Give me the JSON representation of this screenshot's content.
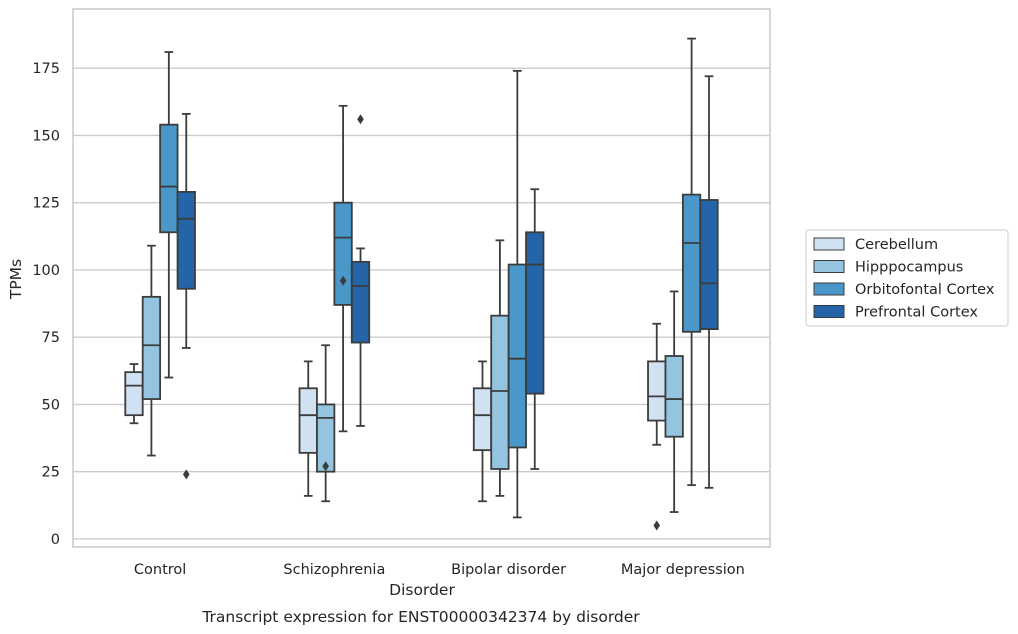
{
  "chart_data": {
    "type": "box",
    "xlabel": "Disorder",
    "ylabel": "TPMs",
    "caption": "Transcript expression for ENST00000342374 by disorder",
    "categories": [
      "Control",
      "Schizophrenia",
      "Bipolar disorder",
      "Major depression"
    ],
    "ylim": [
      -3,
      197
    ],
    "yticks": [
      0,
      25,
      50,
      75,
      100,
      125,
      150,
      175
    ],
    "grid": "horizontal",
    "legend_position": "right",
    "series": [
      {
        "name": "Cerebellum",
        "color": "#d0e1f2",
        "boxes": [
          {
            "whislo": 43,
            "q1": 46,
            "med": 57,
            "q3": 62,
            "whishi": 65,
            "fliers": []
          },
          {
            "whislo": 16,
            "q1": 32,
            "med": 46,
            "q3": 56,
            "whishi": 66,
            "fliers": []
          },
          {
            "whislo": 14,
            "q1": 33,
            "med": 46,
            "q3": 56,
            "whishi": 66,
            "fliers": []
          },
          {
            "whislo": 35,
            "q1": 44,
            "med": 53,
            "q3": 66,
            "whishi": 80,
            "fliers": [
              5
            ]
          }
        ]
      },
      {
        "name": "Hipppocampus",
        "color": "#94c4df",
        "boxes": [
          {
            "whislo": 31,
            "q1": 52,
            "med": 72,
            "q3": 90,
            "whishi": 109,
            "fliers": []
          },
          {
            "whislo": 14,
            "q1": 25,
            "med": 45,
            "q3": 50,
            "whishi": 72,
            "fliers": [
              27
            ]
          },
          {
            "whislo": 16,
            "q1": 26,
            "med": 55,
            "q3": 83,
            "whishi": 111,
            "fliers": []
          },
          {
            "whislo": 10,
            "q1": 38,
            "med": 52,
            "q3": 68,
            "whishi": 92,
            "fliers": []
          }
        ]
      },
      {
        "name": "Orbitofontal Cortex",
        "color": "#4a98c9",
        "boxes": [
          {
            "whislo": 60,
            "q1": 114,
            "med": 131,
            "q3": 154,
            "whishi": 181,
            "fliers": []
          },
          {
            "whislo": 40,
            "q1": 87,
            "med": 112,
            "q3": 125,
            "whishi": 161,
            "fliers": [
              96
            ]
          },
          {
            "whislo": 8,
            "q1": 34,
            "med": 67,
            "q3": 102,
            "whishi": 174,
            "fliers": []
          },
          {
            "whislo": 20,
            "q1": 77,
            "med": 110,
            "q3": 128,
            "whishi": 186,
            "fliers": []
          }
        ]
      },
      {
        "name": "Prefrontal Cortex",
        "color": "#2464a8",
        "boxes": [
          {
            "whislo": 71,
            "q1": 93,
            "med": 119,
            "q3": 129,
            "whishi": 158,
            "fliers": [
              24
            ]
          },
          {
            "whislo": 42,
            "q1": 73,
            "med": 94,
            "q3": 103,
            "whishi": 108,
            "fliers": [
              156
            ]
          },
          {
            "whislo": 26,
            "q1": 54,
            "med": 102,
            "q3": 114,
            "whishi": 130,
            "fliers": []
          },
          {
            "whislo": 19,
            "q1": 78,
            "med": 95,
            "q3": 126,
            "whishi": 172,
            "fliers": []
          }
        ]
      }
    ]
  }
}
